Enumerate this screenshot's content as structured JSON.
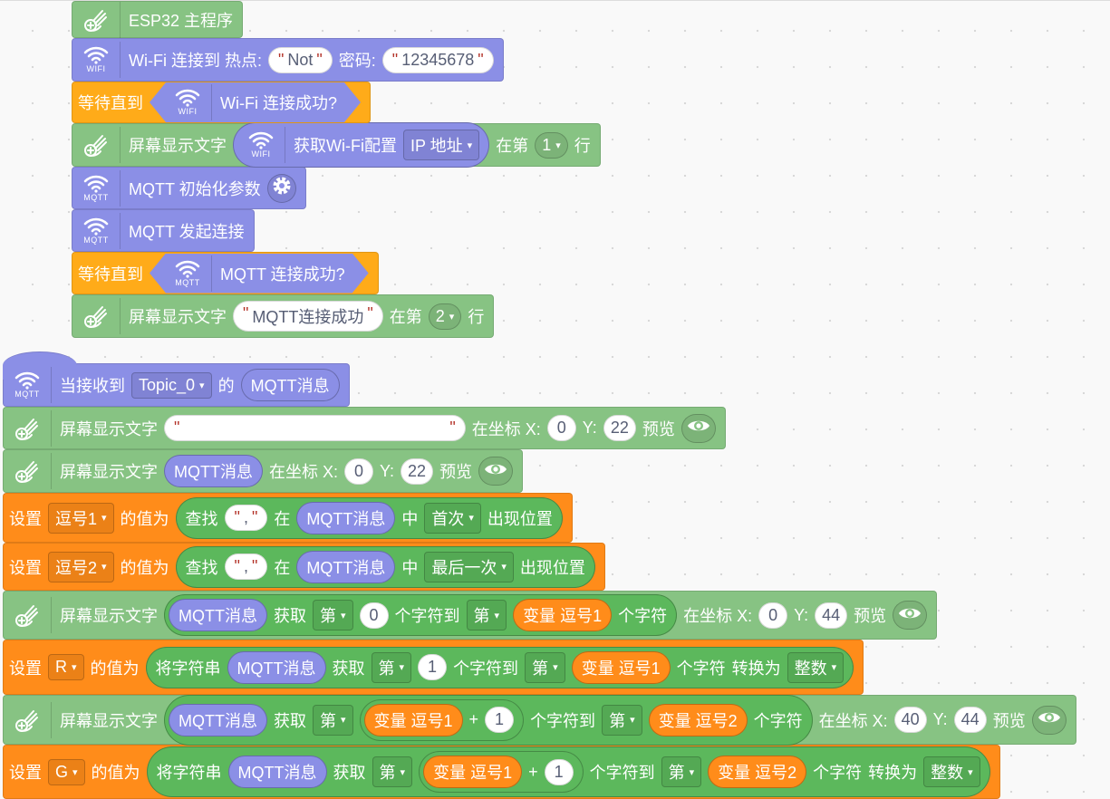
{
  "colors": {
    "green_block": "#87c383",
    "green_reporter": "#5cb85c",
    "purple": "#8b8fe6",
    "orange": "#ff8c1a",
    "wait_yellow": "#ffab19"
  },
  "blocks": [
    {
      "kind": "esp32-main-block",
      "color": "#87c383",
      "parts": [
        {
          "t": "icon",
          "icon": "pen-icon",
          "label": ""
        },
        {
          "t": "text",
          "v": "ESP32 主程序"
        }
      ]
    },
    {
      "kind": "wifi-connect-block",
      "color": "#8b8fe6",
      "parts": [
        {
          "t": "icon",
          "icon": "wifi-icon",
          "label": "WIFI"
        },
        {
          "t": "text",
          "v": "Wi-Fi 连接到 热点:"
        },
        {
          "t": "str",
          "v": "Not"
        },
        {
          "t": "text",
          "v": "密码:"
        },
        {
          "t": "str",
          "v": "12345678"
        }
      ]
    },
    {
      "kind": "wait-until-block",
      "color": "#ffab19",
      "parts": [
        {
          "t": "text",
          "v": "等待直到"
        },
        {
          "t": "bool",
          "color": "#8b8fe6",
          "parts": [
            {
              "t": "icon",
              "icon": "wifi-icon",
              "label": "WIFI"
            },
            {
              "t": "text",
              "v": "Wi-Fi 连接成功?"
            }
          ]
        }
      ]
    },
    {
      "kind": "screen-text-block",
      "color": "#87c383",
      "parts": [
        {
          "t": "icon",
          "icon": "pen-icon",
          "label": ""
        },
        {
          "t": "text",
          "v": "屏幕显示文字"
        },
        {
          "t": "rep",
          "color": "#8b8fe6",
          "parts": [
            {
              "t": "icon",
              "icon": "wifi-icon",
              "label": "WIFI"
            },
            {
              "t": "text",
              "v": "获取Wi-Fi配置"
            },
            {
              "t": "dd",
              "v": "IP 地址"
            }
          ]
        },
        {
          "t": "text",
          "v": "在第"
        },
        {
          "t": "dd",
          "v": "1",
          "round": true
        },
        {
          "t": "text",
          "v": "行"
        }
      ]
    },
    {
      "kind": "mqtt-init-block",
      "color": "#8b8fe6",
      "parts": [
        {
          "t": "icon",
          "icon": "mqtt-icon",
          "label": "MQTT"
        },
        {
          "t": "text",
          "v": "MQTT 初始化参数"
        },
        {
          "t": "gear"
        }
      ]
    },
    {
      "kind": "mqtt-connect-block",
      "color": "#8b8fe6",
      "parts": [
        {
          "t": "icon",
          "icon": "mqtt-icon",
          "label": "MQTT"
        },
        {
          "t": "text",
          "v": "MQTT 发起连接"
        }
      ]
    },
    {
      "kind": "wait-until-block",
      "color": "#ffab19",
      "parts": [
        {
          "t": "text",
          "v": "等待直到"
        },
        {
          "t": "bool",
          "color": "#8b8fe6",
          "parts": [
            {
              "t": "icon",
              "icon": "mqtt-icon",
              "label": "MQTT"
            },
            {
              "t": "text",
              "v": "MQTT 连接成功?"
            }
          ]
        }
      ]
    },
    {
      "kind": "screen-text-block",
      "color": "#87c383",
      "parts": [
        {
          "t": "icon",
          "icon": "pen-icon",
          "label": ""
        },
        {
          "t": "text",
          "v": "屏幕显示文字"
        },
        {
          "t": "str",
          "v": "MQTT连接成功"
        },
        {
          "t": "text",
          "v": "在第"
        },
        {
          "t": "dd",
          "v": "2",
          "round": true
        },
        {
          "t": "text",
          "v": "行"
        }
      ]
    },
    {
      "kind": "mqtt-receive-hat-block",
      "color": "#8b8fe6",
      "hat": true,
      "parts": [
        {
          "t": "icon",
          "icon": "mqtt-icon",
          "label": "MQTT"
        },
        {
          "t": "text",
          "v": "当接收到"
        },
        {
          "t": "dd",
          "v": "Topic_0"
        },
        {
          "t": "text",
          "v": "的"
        },
        {
          "t": "rep",
          "color": "#8b8fe6",
          "parts": [
            {
              "t": "text",
              "v": "MQTT消息"
            }
          ]
        }
      ]
    },
    {
      "kind": "screen-text-xy-block",
      "color": "#87c383",
      "parts": [
        {
          "t": "icon",
          "icon": "pen-icon",
          "label": ""
        },
        {
          "t": "text",
          "v": "屏幕显示文字"
        },
        {
          "t": "str",
          "v": ""
        },
        {
          "t": "text",
          "v": "在坐标 X:"
        },
        {
          "t": "num",
          "v": "0"
        },
        {
          "t": "text",
          "v": "Y:"
        },
        {
          "t": "num",
          "v": "22"
        },
        {
          "t": "text",
          "v": "预览"
        },
        {
          "t": "eye"
        }
      ]
    },
    {
      "kind": "screen-text-xy-block",
      "color": "#87c383",
      "parts": [
        {
          "t": "icon",
          "icon": "pen-icon",
          "label": ""
        },
        {
          "t": "text",
          "v": "屏幕显示文字"
        },
        {
          "t": "rep",
          "color": "#8b8fe6",
          "parts": [
            {
              "t": "text",
              "v": "MQTT消息"
            }
          ]
        },
        {
          "t": "text",
          "v": "在坐标 X:"
        },
        {
          "t": "num",
          "v": "0"
        },
        {
          "t": "text",
          "v": "Y:"
        },
        {
          "t": "num",
          "v": "22"
        },
        {
          "t": "text",
          "v": "预览"
        },
        {
          "t": "eye"
        }
      ]
    },
    {
      "kind": "set-variable-block",
      "color": "#ff8c1a",
      "parts": [
        {
          "t": "text",
          "v": "设置"
        },
        {
          "t": "dd",
          "v": "逗号1"
        },
        {
          "t": "text",
          "v": "的值为"
        },
        {
          "t": "rep",
          "color": "#5cb85c",
          "parts": [
            {
              "t": "text",
              "v": "查找"
            },
            {
              "t": "str",
              "v": ","
            },
            {
              "t": "text",
              "v": "在"
            },
            {
              "t": "rep",
              "color": "#8b8fe6",
              "parts": [
                {
                  "t": "text",
                  "v": "MQTT消息"
                }
              ]
            },
            {
              "t": "text",
              "v": "中"
            },
            {
              "t": "dd",
              "v": "首次"
            },
            {
              "t": "text",
              "v": "出现位置"
            }
          ]
        }
      ]
    },
    {
      "kind": "set-variable-block",
      "color": "#ff8c1a",
      "parts": [
        {
          "t": "text",
          "v": "设置"
        },
        {
          "t": "dd",
          "v": "逗号2"
        },
        {
          "t": "text",
          "v": "的值为"
        },
        {
          "t": "rep",
          "color": "#5cb85c",
          "parts": [
            {
              "t": "text",
              "v": "查找"
            },
            {
              "t": "str",
              "v": ","
            },
            {
              "t": "text",
              "v": "在"
            },
            {
              "t": "rep",
              "color": "#8b8fe6",
              "parts": [
                {
                  "t": "text",
                  "v": "MQTT消息"
                }
              ]
            },
            {
              "t": "text",
              "v": "中"
            },
            {
              "t": "dd",
              "v": "最后一次"
            },
            {
              "t": "text",
              "v": "出现位置"
            }
          ]
        }
      ]
    },
    {
      "kind": "screen-text-xy-block",
      "color": "#87c383",
      "parts": [
        {
          "t": "icon",
          "icon": "pen-icon",
          "label": ""
        },
        {
          "t": "text",
          "v": "屏幕显示文字"
        },
        {
          "t": "rep",
          "color": "#5cb85c",
          "tight": true,
          "parts": [
            {
              "t": "rep",
              "color": "#8b8fe6",
              "parts": [
                {
                  "t": "text",
                  "v": "MQTT消息"
                }
              ]
            },
            {
              "t": "text",
              "v": "获取"
            },
            {
              "t": "dd",
              "v": "第"
            },
            {
              "t": "num",
              "v": "0"
            },
            {
              "t": "text",
              "v": "个字符到"
            },
            {
              "t": "dd",
              "v": "第"
            },
            {
              "t": "rep",
              "color": "#ff8c1a",
              "parts": [
                {
                  "t": "text",
                  "v": "变量 逗号1"
                }
              ]
            },
            {
              "t": "text",
              "v": "个字符"
            }
          ]
        },
        {
          "t": "text",
          "v": "在坐标 X:"
        },
        {
          "t": "num",
          "v": "0"
        },
        {
          "t": "text",
          "v": "Y:"
        },
        {
          "t": "num",
          "v": "44"
        },
        {
          "t": "text",
          "v": "预览"
        },
        {
          "t": "eye"
        }
      ]
    },
    {
      "kind": "set-variable-block",
      "color": "#ff8c1a",
      "parts": [
        {
          "t": "text",
          "v": "设置"
        },
        {
          "t": "dd",
          "v": "R"
        },
        {
          "t": "text",
          "v": "的值为"
        },
        {
          "t": "rep",
          "color": "#5cb85c",
          "parts": [
            {
              "t": "text",
              "v": "将字符串"
            },
            {
              "t": "rep",
              "color": "#8b8fe6",
              "parts": [
                {
                  "t": "text",
                  "v": "MQTT消息"
                }
              ]
            },
            {
              "t": "text",
              "v": "获取"
            },
            {
              "t": "dd",
              "v": "第"
            },
            {
              "t": "num",
              "v": "1"
            },
            {
              "t": "text",
              "v": "个字符到"
            },
            {
              "t": "dd",
              "v": "第"
            },
            {
              "t": "rep",
              "color": "#ff8c1a",
              "parts": [
                {
                  "t": "text",
                  "v": "变量 逗号1"
                }
              ]
            },
            {
              "t": "text",
              "v": "个字符"
            },
            {
              "t": "text",
              "v": "转换为"
            },
            {
              "t": "dd",
              "v": "整数"
            }
          ]
        }
      ]
    },
    {
      "kind": "screen-text-xy-block",
      "color": "#87c383",
      "parts": [
        {
          "t": "icon",
          "icon": "pen-icon",
          "label": ""
        },
        {
          "t": "text",
          "v": "屏幕显示文字"
        },
        {
          "t": "rep",
          "color": "#5cb85c",
          "tight": true,
          "parts": [
            {
              "t": "rep",
              "color": "#8b8fe6",
              "parts": [
                {
                  "t": "text",
                  "v": "MQTT消息"
                }
              ]
            },
            {
              "t": "text",
              "v": "获取"
            },
            {
              "t": "dd",
              "v": "第"
            },
            {
              "t": "rep",
              "color": "#5cb85c",
              "tight": true,
              "parts": [
                {
                  "t": "rep",
                  "color": "#ff8c1a",
                  "parts": [
                    {
                      "t": "text",
                      "v": "变量 逗号1"
                    }
                  ]
                },
                {
                  "t": "text",
                  "v": "+"
                },
                {
                  "t": "num",
                  "v": "1"
                }
              ]
            },
            {
              "t": "text",
              "v": "个字符到"
            },
            {
              "t": "dd",
              "v": "第"
            },
            {
              "t": "rep",
              "color": "#ff8c1a",
              "parts": [
                {
                  "t": "text",
                  "v": "变量 逗号2"
                }
              ]
            },
            {
              "t": "text",
              "v": "个字符"
            }
          ]
        },
        {
          "t": "text",
          "v": "在坐标 X:"
        },
        {
          "t": "num",
          "v": "40"
        },
        {
          "t": "text",
          "v": "Y:"
        },
        {
          "t": "num",
          "v": "44"
        },
        {
          "t": "text",
          "v": "预览"
        },
        {
          "t": "eye"
        }
      ]
    },
    {
      "kind": "set-variable-block",
      "color": "#ff8c1a",
      "parts": [
        {
          "t": "text",
          "v": "设置"
        },
        {
          "t": "dd",
          "v": "G"
        },
        {
          "t": "text",
          "v": "的值为"
        },
        {
          "t": "rep",
          "color": "#5cb85c",
          "parts": [
            {
              "t": "text",
              "v": "将字符串"
            },
            {
              "t": "rep",
              "color": "#8b8fe6",
              "parts": [
                {
                  "t": "text",
                  "v": "MQTT消息"
                }
              ]
            },
            {
              "t": "text",
              "v": "获取"
            },
            {
              "t": "dd",
              "v": "第"
            },
            {
              "t": "rep",
              "color": "#5cb85c",
              "tight": true,
              "parts": [
                {
                  "t": "rep",
                  "color": "#ff8c1a",
                  "parts": [
                    {
                      "t": "text",
                      "v": "变量 逗号1"
                    }
                  ]
                },
                {
                  "t": "text",
                  "v": "+"
                },
                {
                  "t": "num",
                  "v": "1"
                }
              ]
            },
            {
              "t": "text",
              "v": "个字符到"
            },
            {
              "t": "dd",
              "v": "第"
            },
            {
              "t": "rep",
              "color": "#ff8c1a",
              "parts": [
                {
                  "t": "text",
                  "v": "变量 逗号2"
                }
              ]
            },
            {
              "t": "text",
              "v": "个字符"
            },
            {
              "t": "text",
              "v": "转换为"
            },
            {
              "t": "dd",
              "v": "整数"
            }
          ]
        }
      ]
    }
  ]
}
